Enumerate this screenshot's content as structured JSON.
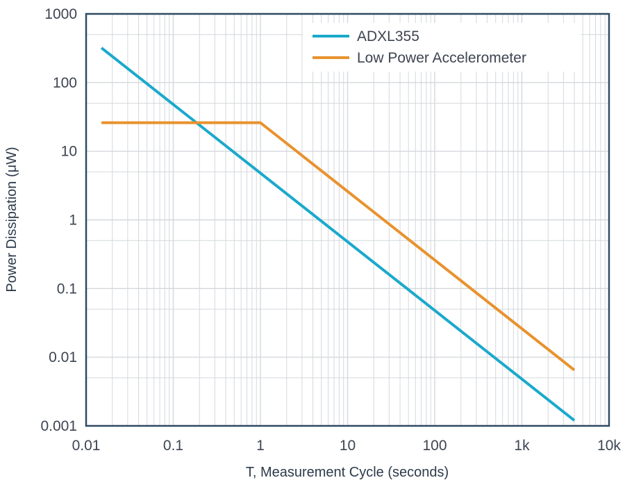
{
  "chart_data": {
    "type": "line",
    "xlabel": "T, Measurement Cycle (seconds)",
    "ylabel": "Power Dissipation (μW)",
    "x_scale": "log",
    "y_scale": "log",
    "xlim": [
      0.01,
      10000
    ],
    "ylim": [
      0.001,
      1000
    ],
    "x_ticks": [
      {
        "value": 0.01,
        "label": "0.01"
      },
      {
        "value": 0.1,
        "label": "0.1"
      },
      {
        "value": 1,
        "label": "1"
      },
      {
        "value": 10,
        "label": "10"
      },
      {
        "value": 100,
        "label": "100"
      },
      {
        "value": 1000,
        "label": "1k"
      },
      {
        "value": 10000,
        "label": "10k"
      }
    ],
    "y_ticks": [
      {
        "value": 1000,
        "label": "1000"
      },
      {
        "value": 100,
        "label": "100"
      },
      {
        "value": 10,
        "label": "10"
      },
      {
        "value": 1,
        "label": "1"
      },
      {
        "value": 0.1,
        "label": "0.1"
      },
      {
        "value": 0.01,
        "label": "0.01"
      },
      {
        "value": 0.001,
        "label": "0.001"
      }
    ],
    "grid": true,
    "legend_position": "top-right",
    "series": [
      {
        "name": "ADXL355",
        "color": "#1ba9cc",
        "points": [
          [
            0.015,
            320
          ],
          [
            4000,
            0.0012
          ]
        ]
      },
      {
        "name": "Low Power Accelerometer",
        "color": "#e8922e",
        "points": [
          [
            0.015,
            26
          ],
          [
            1,
            26
          ],
          [
            4000,
            0.0065
          ]
        ]
      }
    ]
  },
  "colors": {
    "frame": "#2f4a63",
    "grid": "#d4d8dc",
    "text": "#3d4451"
  }
}
